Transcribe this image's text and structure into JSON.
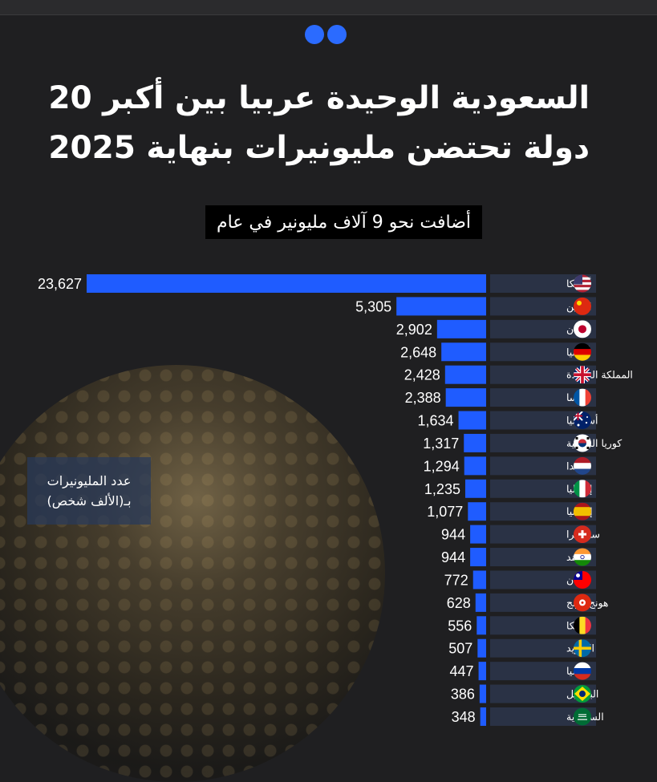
{
  "header": {
    "title_line1": "السعودية الوحيدة عربيا بين أكبر 20",
    "title_line2": "دولة تحتضن مليونيرات بنهاية 2025",
    "subtitle": "أضافت نحو 9 آلاف مليونير في عام"
  },
  "note": {
    "line1": "عدد المليونيرات",
    "line2": "بـ(الألف شخص)"
  },
  "colors": {
    "bar": "#1f5cff",
    "label_bg": "#2a3245",
    "accent": "#2b6bff"
  },
  "chart_data": {
    "type": "bar",
    "orientation": "horizontal",
    "categories": [
      "أمريكا",
      "الصين",
      "اليابان",
      "ألمانيا",
      "المملكة المتحدة",
      "فرنسا",
      "أستراليا",
      "كوريا الجنوبية",
      "هولندا",
      "إيطاليا",
      "إسبانيا",
      "سويسرا",
      "الهند",
      "تايوان",
      "هونج كونج",
      "بلجيكا",
      "السويد",
      "روسيا",
      "البرازيل",
      "السعودية"
    ],
    "value_labels": [
      "23,627",
      "5,305",
      "2,902",
      "2,648",
      "2,428",
      "2,388",
      "1,634",
      "1,317",
      "1,294",
      "1,235",
      "1,077",
      "944",
      "944",
      "772",
      "628",
      "556",
      "507",
      "447",
      "386",
      "348"
    ],
    "values": [
      23627,
      5305,
      2902,
      2648,
      2428,
      2388,
      1634,
      1317,
      1294,
      1235,
      1077,
      944,
      944,
      772,
      628,
      556,
      507,
      447,
      386,
      348
    ],
    "flags": [
      "us-flag-icon",
      "china-flag-icon",
      "japan-flag-icon",
      "germany-flag-icon",
      "uk-flag-icon",
      "france-flag-icon",
      "australia-flag-icon",
      "south-korea-flag-icon",
      "netherlands-flag-icon",
      "italy-flag-icon",
      "spain-flag-icon",
      "switzerland-flag-icon",
      "india-flag-icon",
      "taiwan-flag-icon",
      "hong-kong-flag-icon",
      "belgium-flag-icon",
      "sweden-flag-icon",
      "russia-flag-icon",
      "brazil-flag-icon",
      "saudi-arabia-flag-icon"
    ]
  }
}
